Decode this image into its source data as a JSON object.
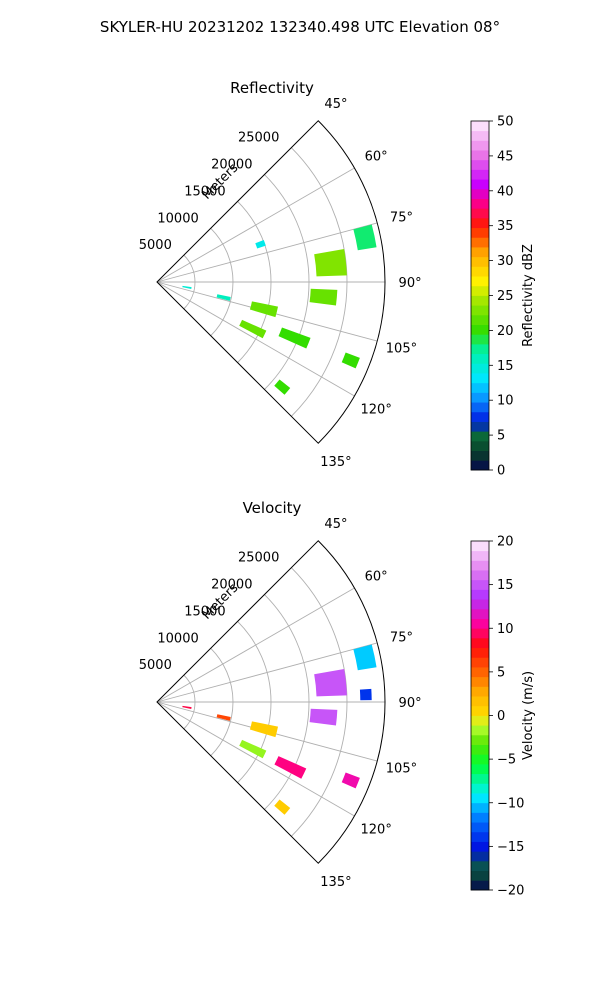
{
  "figure_title": "SKYLER-HU  20231202  132340.498 UTC Elevation 08°",
  "chart_data": [
    {
      "type": "heatmap",
      "title": "Reflectivity",
      "projection": "polar-sector",
      "theta_range_deg": [
        45,
        135
      ],
      "r_range_m": [
        0,
        30000
      ],
      "radial_label": "Meters",
      "r_ticks": [
        5000,
        10000,
        15000,
        20000,
        25000
      ],
      "r_tick_labels": [
        "5000",
        "10000",
        "15000",
        "20000",
        "25000"
      ],
      "theta_ticks": [
        45,
        60,
        75,
        90,
        105,
        120,
        135
      ],
      "theta_tick_labels": [
        "45°",
        "60°",
        "75°",
        "90°",
        "105°",
        "120°",
        "135°"
      ],
      "grid": true,
      "colorbar": {
        "label": "Reflectivity dBZ",
        "min": 0,
        "max": 50,
        "ticks": [
          0,
          5,
          10,
          15,
          20,
          25,
          30,
          35,
          40,
          45,
          50
        ],
        "tick_labels": [
          "0",
          "5",
          "10",
          "15",
          "20",
          "25",
          "30",
          "35",
          "40",
          "45",
          "50"
        ]
      },
      "echoes": [
        {
          "theta": 100,
          "r": 4000,
          "dtheta": 3,
          "dr": 1200,
          "value": 15
        },
        {
          "theta": 103,
          "r": 9000,
          "dtheta": 3,
          "dr": 1800,
          "value": 16
        },
        {
          "theta": 104,
          "r": 14500,
          "dtheta": 5,
          "dr": 3500,
          "value": 22
        },
        {
          "theta": 112,
          "r": 19500,
          "dtheta": 4,
          "dr": 4000,
          "value": 20
        },
        {
          "theta": 116,
          "r": 14000,
          "dtheta": 4,
          "dr": 3500,
          "value": 22
        },
        {
          "theta": 84,
          "r": 23000,
          "dtheta": 8,
          "dr": 4000,
          "value": 23
        },
        {
          "theta": 95,
          "r": 22000,
          "dtheta": 5,
          "dr": 3500,
          "value": 22
        },
        {
          "theta": 78,
          "r": 28000,
          "dtheta": 6,
          "dr": 2500,
          "value": 18
        },
        {
          "theta": 112,
          "r": 27500,
          "dtheta": 3,
          "dr": 2000,
          "value": 20
        },
        {
          "theta": 130,
          "r": 21500,
          "dtheta": 3,
          "dr": 1800,
          "value": 20
        },
        {
          "theta": 70,
          "r": 14500,
          "dtheta": 3,
          "dr": 1200,
          "value": 14
        }
      ]
    },
    {
      "type": "heatmap",
      "title": "Velocity",
      "projection": "polar-sector",
      "theta_range_deg": [
        45,
        135
      ],
      "r_range_m": [
        0,
        30000
      ],
      "radial_label": "Meters",
      "r_ticks": [
        5000,
        10000,
        15000,
        20000,
        25000
      ],
      "r_tick_labels": [
        "5000",
        "10000",
        "15000",
        "20000",
        "25000"
      ],
      "theta_ticks": [
        45,
        60,
        75,
        90,
        105,
        120,
        135
      ],
      "theta_tick_labels": [
        "45°",
        "60°",
        "75°",
        "90°",
        "105°",
        "120°",
        "135°"
      ],
      "grid": true,
      "colorbar": {
        "label": "Velocity (m/s)",
        "min": -20,
        "max": 20,
        "ticks": [
          -20,
          -15,
          -10,
          -5,
          0,
          5,
          10,
          15,
          20
        ],
        "tick_labels": [
          "−20",
          "−15",
          "−10",
          "−5",
          "0",
          "5",
          "10",
          "15",
          "20"
        ]
      },
      "echoes": [
        {
          "theta": 100,
          "r": 4000,
          "dtheta": 3,
          "dr": 1200,
          "value": 9
        },
        {
          "theta": 103,
          "r": 9000,
          "dtheta": 3,
          "dr": 1800,
          "value": 6
        },
        {
          "theta": 104,
          "r": 14500,
          "dtheta": 5,
          "dr": 3500,
          "value": 1
        },
        {
          "theta": 116,
          "r": 19500,
          "dtheta": 4,
          "dr": 4000,
          "value": 10
        },
        {
          "theta": 116,
          "r": 14000,
          "dtheta": 4,
          "dr": 3500,
          "value": -2
        },
        {
          "theta": 84,
          "r": 23000,
          "dtheta": 8,
          "dr": 4000,
          "value": 15
        },
        {
          "theta": 95,
          "r": 22000,
          "dtheta": 5,
          "dr": 3500,
          "value": 15
        },
        {
          "theta": 78,
          "r": 28000,
          "dtheta": 6,
          "dr": 2500,
          "value": -10
        },
        {
          "theta": 112,
          "r": 27500,
          "dtheta": 3,
          "dr": 2000,
          "value": 11
        },
        {
          "theta": 130,
          "r": 21500,
          "dtheta": 3,
          "dr": 1800,
          "value": 1
        },
        {
          "theta": 88,
          "r": 27500,
          "dtheta": 3,
          "dr": 1500,
          "value": -14
        }
      ]
    }
  ]
}
